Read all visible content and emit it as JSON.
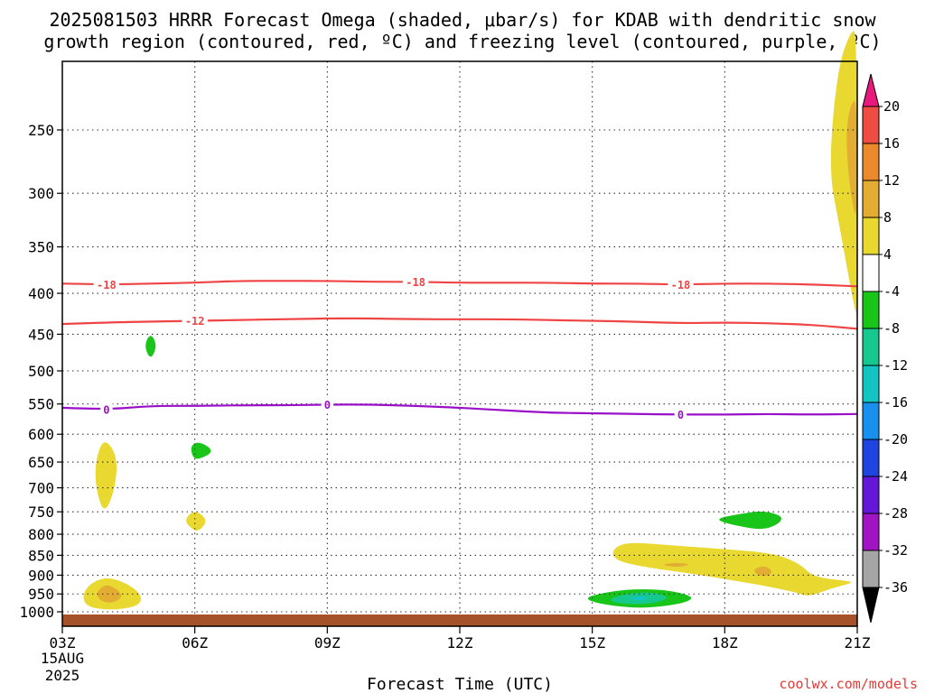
{
  "title": {
    "line1": "2025081503 HRRR Forecast Omega (shaded, μbar/s) for KDAB with dendritic snow",
    "line2": "growth region (contoured, red, ºC) and freezing level (contoured, purple, ºC)"
  },
  "credit": "coolwx.com/models",
  "chart_data": {
    "type": "time-height cross section",
    "xlabel": "Forecast Time (UTC)",
    "x_ticks": [
      "03Z",
      "06Z",
      "09Z",
      "12Z",
      "15Z",
      "18Z",
      "21Z"
    ],
    "x_range_hours": [
      3,
      21
    ],
    "date_label": [
      "15AUG",
      "2025"
    ],
    "y_ticks_hPa": [
      250,
      300,
      350,
      400,
      450,
      500,
      550,
      600,
      650,
      700,
      750,
      800,
      850,
      900,
      950,
      1000
    ],
    "y_range_hPa": [
      200,
      1020
    ],
    "grid": true,
    "shading_variable": "Omega (μbar/s)",
    "colorbar": {
      "labels": [
        "20",
        "16",
        "12",
        "8",
        "4",
        "-4",
        "-8",
        "-12",
        "-16",
        "-20",
        "-24",
        "-28",
        "-32",
        "-36"
      ],
      "bins": [
        {
          "lo": 20,
          "hi": null,
          "color": "#e8187c"
        },
        {
          "lo": 16,
          "hi": 20,
          "color": "#ef4d43"
        },
        {
          "lo": 12,
          "hi": 16,
          "color": "#ea8a2c"
        },
        {
          "lo": 8,
          "hi": 12,
          "color": "#e3ad33"
        },
        {
          "lo": 4,
          "hi": 8,
          "color": "#e8d830"
        },
        {
          "lo": -4,
          "hi": 4,
          "color": "#ffffff"
        },
        {
          "lo": -8,
          "hi": -4,
          "color": "#19c519"
        },
        {
          "lo": -12,
          "hi": -8,
          "color": "#16c88e"
        },
        {
          "lo": -16,
          "hi": -12,
          "color": "#12c4c2"
        },
        {
          "lo": -20,
          "hi": -16,
          "color": "#1890ee"
        },
        {
          "lo": -24,
          "hi": -20,
          "color": "#2044e0"
        },
        {
          "lo": -28,
          "hi": -24,
          "color": "#6218d6"
        },
        {
          "lo": -32,
          "hi": -28,
          "color": "#a114c4"
        },
        {
          "lo": -36,
          "hi": -32,
          "color": "#a5a5a5"
        },
        {
          "lo": null,
          "hi": -36,
          "color": "#000000"
        }
      ]
    },
    "contours": [
      {
        "name": "-18",
        "color": "#ef4444",
        "points": [
          [
            3,
            389
          ],
          [
            4,
            390
          ],
          [
            5,
            389
          ],
          [
            6,
            388
          ],
          [
            7,
            386
          ],
          [
            8,
            386
          ],
          [
            9,
            386
          ],
          [
            10,
            387
          ],
          [
            11,
            387
          ],
          [
            12,
            388
          ],
          [
            13,
            388
          ],
          [
            14,
            388
          ],
          [
            15,
            389
          ],
          [
            16,
            389
          ],
          [
            17,
            390
          ],
          [
            18,
            389
          ],
          [
            19,
            389
          ],
          [
            20,
            390
          ],
          [
            21,
            392
          ]
        ],
        "labels": [
          [
            4,
            "-18"
          ],
          [
            11,
            "-18"
          ],
          [
            17,
            "-18"
          ]
        ]
      },
      {
        "name": "-12",
        "color": "#ef4444",
        "points": [
          [
            3,
            437
          ],
          [
            4,
            435
          ],
          [
            5,
            434
          ],
          [
            6,
            433
          ],
          [
            7,
            432
          ],
          [
            8,
            431
          ],
          [
            9,
            430
          ],
          [
            10,
            430
          ],
          [
            11,
            431
          ],
          [
            12,
            431
          ],
          [
            13,
            431
          ],
          [
            14,
            432
          ],
          [
            15,
            433
          ],
          [
            16,
            434
          ],
          [
            17,
            436
          ],
          [
            18,
            435
          ],
          [
            19,
            436
          ],
          [
            20,
            438
          ],
          [
            21,
            443
          ]
        ],
        "labels": [
          [
            6,
            "-12"
          ]
        ]
      },
      {
        "name": "0",
        "color": "#9a10c8",
        "points": [
          [
            3,
            556
          ],
          [
            4,
            559
          ],
          [
            5,
            553
          ],
          [
            6,
            553
          ],
          [
            7,
            552
          ],
          [
            8,
            552
          ],
          [
            9,
            551
          ],
          [
            10,
            551
          ],
          [
            11,
            553
          ],
          [
            12,
            556
          ],
          [
            13,
            560
          ],
          [
            14,
            564
          ],
          [
            15,
            565
          ],
          [
            16,
            566
          ],
          [
            17,
            567
          ],
          [
            18,
            567
          ],
          [
            19,
            566
          ],
          [
            20,
            567
          ],
          [
            21,
            566
          ]
        ],
        "labels": [
          [
            4,
            "0"
          ],
          [
            9,
            "0"
          ],
          [
            17,
            "0"
          ]
        ]
      }
    ],
    "shaded_regions": [
      {
        "bin": "4-8",
        "color": "#e8d830",
        "points": [
          [
            20.35,
            280
          ],
          [
            20.55,
            210
          ],
          [
            20.85,
            188
          ],
          [
            21,
            188
          ],
          [
            21,
            428
          ],
          [
            20.95,
            420
          ],
          [
            20.8,
            380
          ],
          [
            20.6,
            330
          ]
        ]
      },
      {
        "bin": "8-12",
        "color": "#e3ad33",
        "points": [
          [
            20.75,
            250
          ],
          [
            20.85,
            232
          ],
          [
            21,
            228
          ],
          [
            21,
            330
          ],
          [
            20.85,
            300
          ],
          [
            20.78,
            275
          ]
        ]
      },
      {
        "bin": "4-8",
        "color": "#e8d830",
        "points": [
          [
            3.75,
            645
          ],
          [
            3.95,
            605
          ],
          [
            4.25,
            640
          ],
          [
            4.2,
            700
          ],
          [
            3.95,
            758
          ],
          [
            3.75,
            700
          ]
        ]
      },
      {
        "bin": "4-8",
        "color": "#e8d830",
        "points": [
          [
            3.45,
            955
          ],
          [
            3.6,
            925
          ],
          [
            3.95,
            905
          ],
          [
            4.35,
            915
          ],
          [
            4.75,
            945
          ],
          [
            4.8,
            975
          ],
          [
            4.5,
            990
          ],
          [
            4.0,
            995
          ],
          [
            3.55,
            985
          ]
        ]
      },
      {
        "bin": "8-12",
        "color": "#e3ad33",
        "points": [
          [
            3.75,
            950
          ],
          [
            3.9,
            930
          ],
          [
            4.05,
            925
          ],
          [
            4.3,
            942
          ],
          [
            4.35,
            960
          ],
          [
            4.15,
            975
          ],
          [
            3.9,
            972
          ]
        ]
      },
      {
        "bin": "4-8",
        "color": "#e8d830",
        "points": [
          [
            5.75,
            768
          ],
          [
            6.0,
            745
          ],
          [
            6.3,
            768
          ],
          [
            6.1,
            793
          ],
          [
            5.95,
            790
          ]
        ]
      },
      {
        "bin": "-8--4",
        "color": "#19c519",
        "points": [
          [
            4.85,
            465
          ],
          [
            5.0,
            448
          ],
          [
            5.15,
            465
          ],
          [
            5.0,
            485
          ]
        ]
      },
      {
        "bin": "-8--4",
        "color": "#19c519",
        "points": [
          [
            5.9,
            620
          ],
          [
            6.1,
            612
          ],
          [
            6.45,
            630
          ],
          [
            6.1,
            645
          ],
          [
            5.95,
            642
          ]
        ]
      },
      {
        "bin": "-8--4",
        "color": "#19c519",
        "points": [
          [
            17.75,
            766
          ],
          [
            18.3,
            755
          ],
          [
            18.9,
            747
          ],
          [
            19.4,
            763
          ],
          [
            18.95,
            792
          ],
          [
            18.2,
            780
          ]
        ]
      },
      {
        "bin": "4-8",
        "color": "#e8d830",
        "points": [
          [
            15.45,
            835
          ],
          [
            15.8,
            818
          ],
          [
            16.8,
            826
          ],
          [
            18.0,
            835
          ],
          [
            19.1,
            845
          ],
          [
            19.7,
            870
          ],
          [
            20.0,
            905
          ],
          [
            20.8,
            915
          ],
          [
            20.9,
            920
          ],
          [
            20.4,
            935
          ],
          [
            19.9,
            958
          ],
          [
            19.6,
            945
          ],
          [
            18.9,
            928
          ],
          [
            18.0,
            910
          ],
          [
            17.2,
            895
          ],
          [
            16.2,
            880
          ],
          [
            15.5,
            862
          ]
        ]
      },
      {
        "bin": "8-12",
        "color": "#e3ad33",
        "points": [
          [
            16.55,
            874
          ],
          [
            16.85,
            868
          ],
          [
            17.25,
            872
          ],
          [
            16.95,
            880
          ]
        ]
      },
      {
        "bin": "8-12",
        "color": "#e3ad33",
        "points": [
          [
            18.65,
            885
          ],
          [
            18.9,
            875
          ],
          [
            19.1,
            890
          ],
          [
            18.95,
            905
          ],
          [
            18.7,
            897
          ]
        ]
      },
      {
        "bin": "-8--4",
        "color": "#19c519",
        "points": [
          [
            14.85,
            960
          ],
          [
            15.2,
            948
          ],
          [
            15.8,
            937
          ],
          [
            16.6,
            938
          ],
          [
            17.1,
            950
          ],
          [
            17.3,
            962
          ],
          [
            17.0,
            978
          ],
          [
            16.2,
            990
          ],
          [
            15.5,
            984
          ],
          [
            15.0,
            972
          ]
        ]
      },
      {
        "bin": "-12--8",
        "color": "#16c88e",
        "points": [
          [
            15.4,
            962
          ],
          [
            15.9,
            946
          ],
          [
            16.5,
            947
          ],
          [
            16.75,
            962
          ],
          [
            16.35,
            977
          ],
          [
            15.85,
            979
          ],
          [
            15.45,
            972
          ]
        ]
      },
      {
        "bin": "-16--12",
        "color": "#12c4c2",
        "points": [
          [
            15.8,
            962
          ],
          [
            16.1,
            955
          ],
          [
            16.3,
            962
          ],
          [
            16.05,
            970
          ]
        ]
      }
    ]
  }
}
